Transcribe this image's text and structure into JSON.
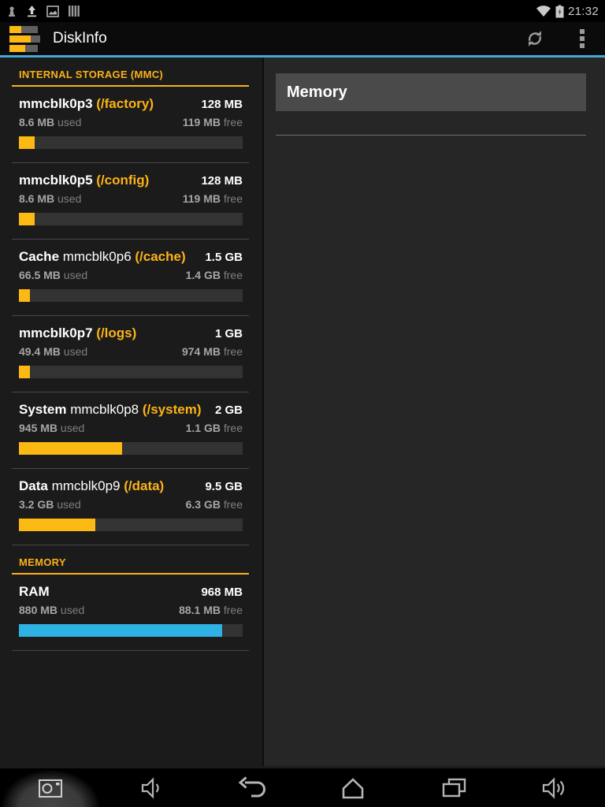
{
  "status_bar": {
    "time": "21:32",
    "left_icons": [
      "notification-icon",
      "usb-upload-icon",
      "screenshot-notification-icon",
      "barcode-notification-icon"
    ],
    "right_icons": [
      "wifi-icon",
      "battery-charging-icon"
    ]
  },
  "action_bar": {
    "title": "DiskInfo",
    "actions": [
      "refresh-icon",
      "overflow-menu-icon"
    ]
  },
  "left_panel": {
    "sections": [
      {
        "title": "INTERNAL STORAGE (MMC)",
        "items": [
          {
            "label": "",
            "device": "mmcblk0p3",
            "mount": "(/factory)",
            "size": "128 MB",
            "used_value": "8.6 MB",
            "used_label": "used",
            "free_value": "119 MB",
            "free_label": "free",
            "percent": 7,
            "bar_color": "#fcb813"
          },
          {
            "label": "",
            "device": "mmcblk0p5",
            "mount": "(/config)",
            "size": "128 MB",
            "used_value": "8.6 MB",
            "used_label": "used",
            "free_value": "119 MB",
            "free_label": "free",
            "percent": 7,
            "bar_color": "#fcb813"
          },
          {
            "label": "Cache",
            "device": "mmcblk0p6",
            "mount": "(/cache)",
            "size": "1.5 GB",
            "used_value": "66.5 MB",
            "used_label": "used",
            "free_value": "1.4 GB",
            "free_label": "free",
            "percent": 5,
            "bar_color": "#fcb813"
          },
          {
            "label": "",
            "device": "mmcblk0p7",
            "mount": "(/logs)",
            "size": "1 GB",
            "used_value": "49.4 MB",
            "used_label": "used",
            "free_value": "974 MB",
            "free_label": "free",
            "percent": 5,
            "bar_color": "#fcb813"
          },
          {
            "label": "System",
            "device": "mmcblk0p8",
            "mount": "(/system)",
            "size": "2 GB",
            "used_value": "945 MB",
            "used_label": "used",
            "free_value": "1.1 GB",
            "free_label": "free",
            "percent": 46,
            "bar_color": "#fcb813"
          },
          {
            "label": "Data",
            "device": "mmcblk0p9",
            "mount": "(/data)",
            "size": "9.5 GB",
            "used_value": "3.2 GB",
            "used_label": "used",
            "free_value": "6.3 GB",
            "free_label": "free",
            "percent": 34,
            "bar_color": "#fcb813"
          }
        ]
      },
      {
        "title": "MEMORY",
        "items": [
          {
            "label": "RAM",
            "device": "",
            "mount": "",
            "size": "968 MB",
            "used_value": "880 MB",
            "used_label": "used",
            "free_value": "88.1 MB",
            "free_label": "free",
            "percent": 91,
            "bar_color": "#2eb2e5"
          }
        ]
      }
    ]
  },
  "detail_panel": {
    "header": "Memory"
  },
  "nav_bar": {
    "buttons": [
      "camera-icon",
      "volume-down-icon",
      "back-icon",
      "home-icon",
      "recents-icon",
      "volume-up-icon"
    ]
  },
  "colors": {
    "accent_yellow": "#fcb813",
    "section_header_yellow": "#fbb117",
    "mount_yellow": "#fcb316",
    "ram_blue": "#2eb2e5",
    "actionbar_underline_blue": "#45a8d8",
    "bar_track": "#333333",
    "left_bg": "#1b1b1b",
    "right_bg": "#262626",
    "detail_header_bg": "#4a4a4a"
  }
}
